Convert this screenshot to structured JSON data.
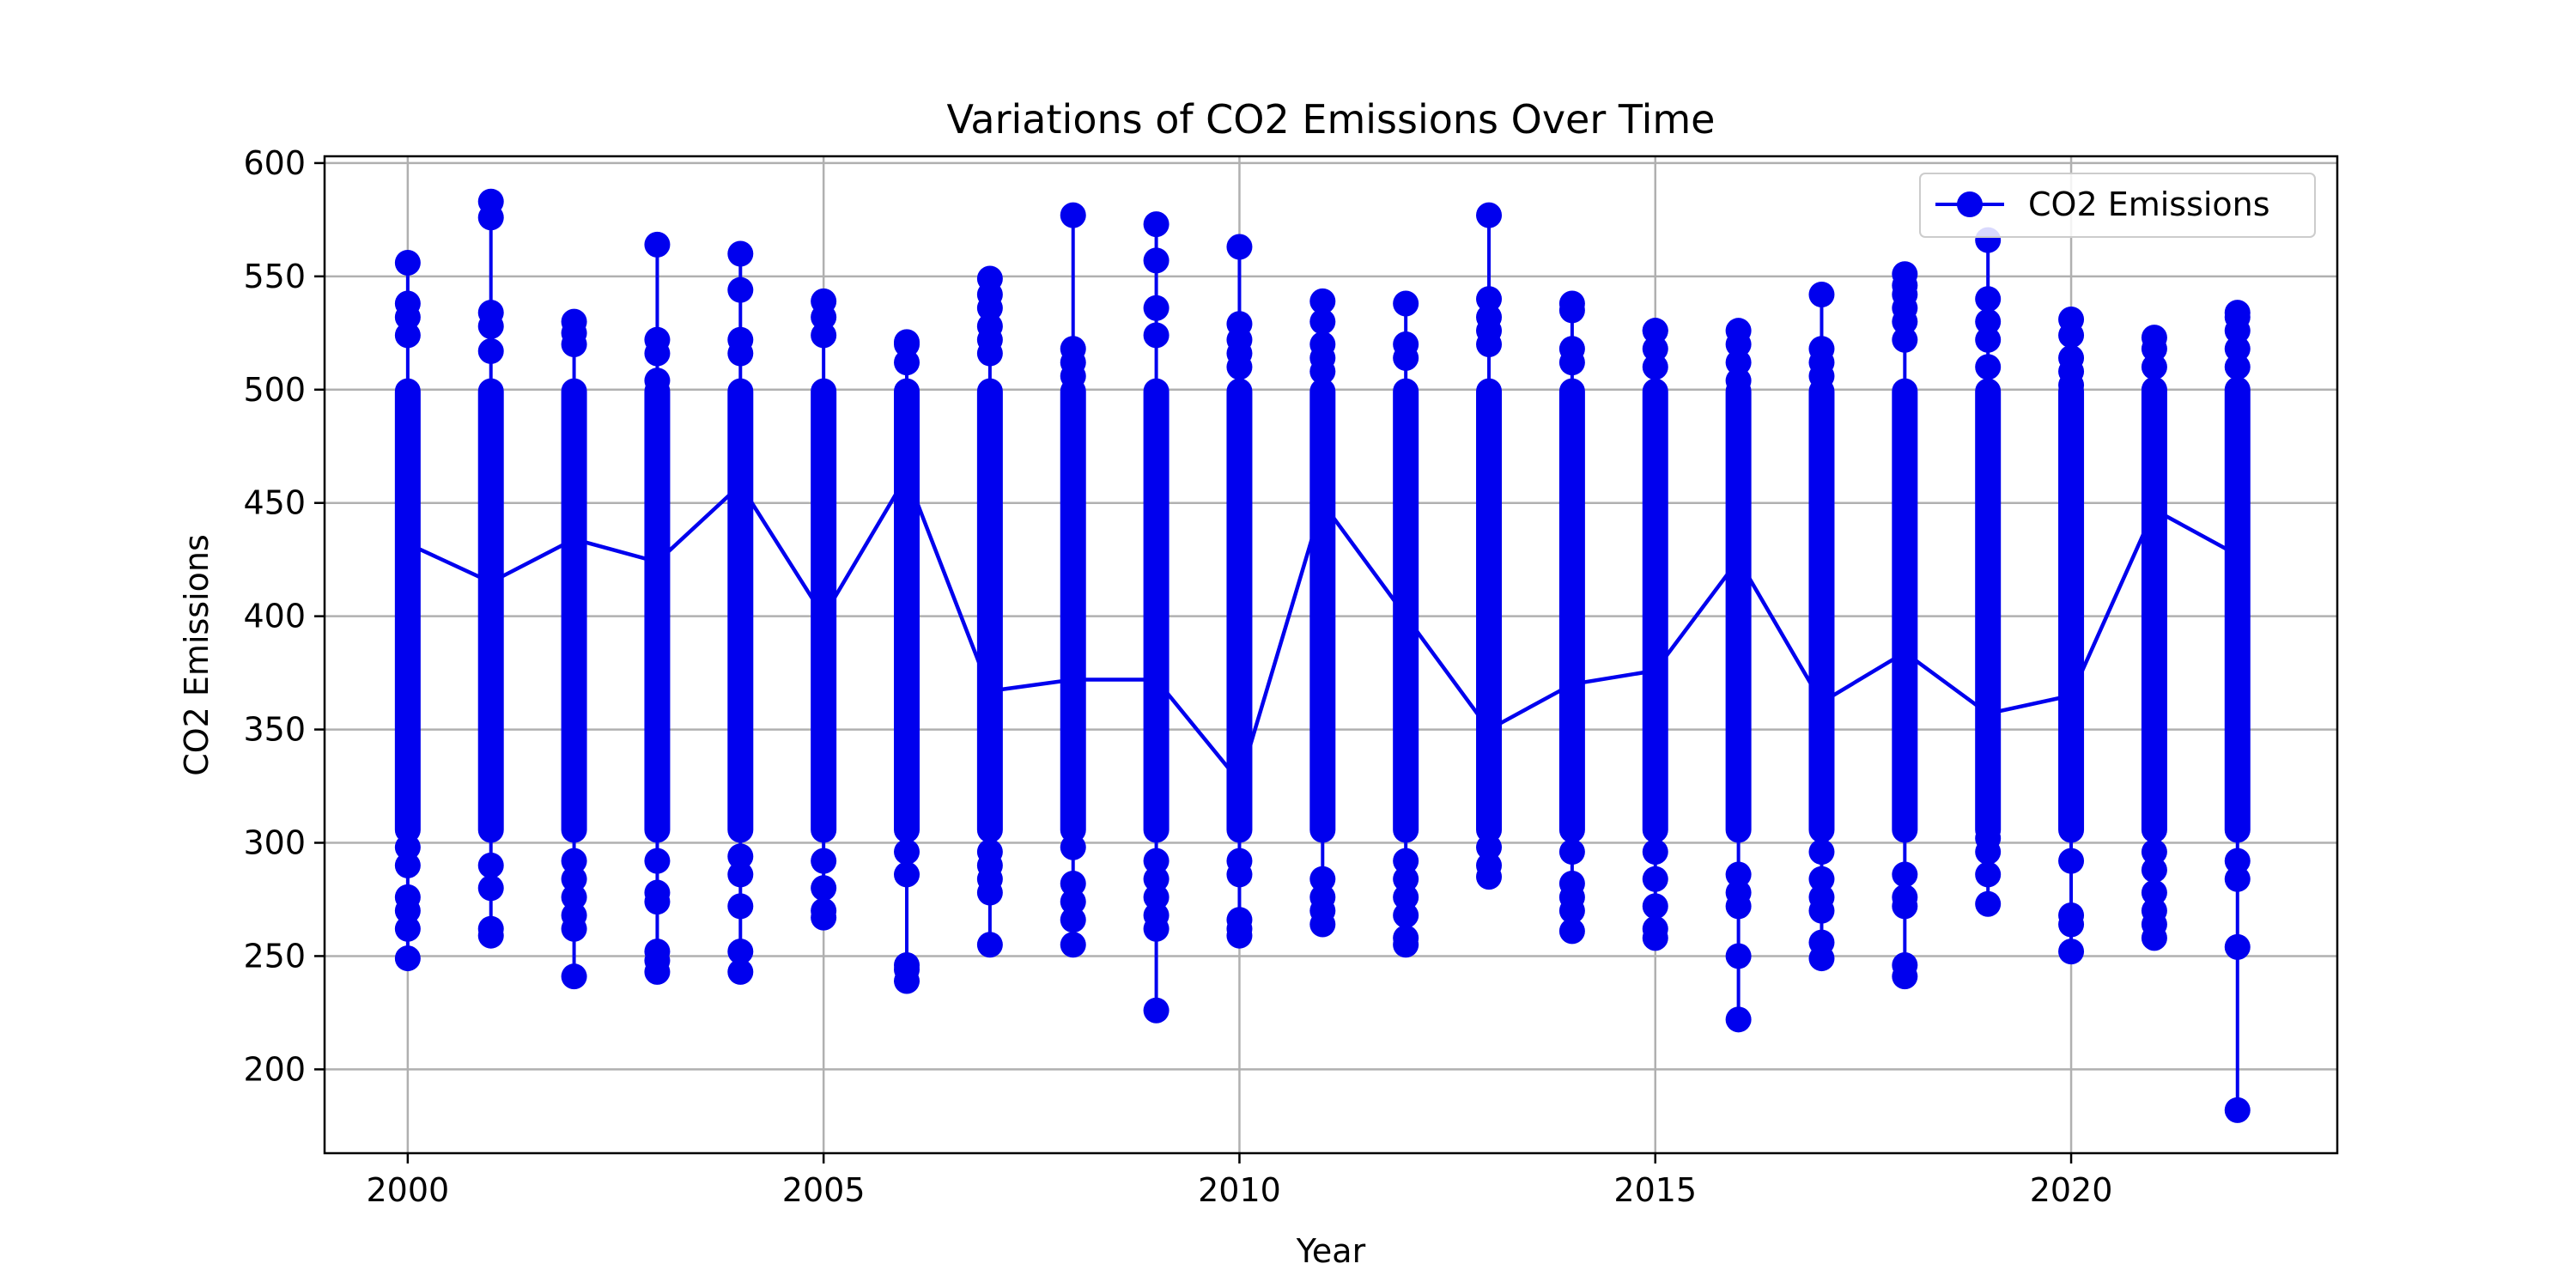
{
  "chart_data": {
    "type": "line",
    "title": "Variations of CO2 Emissions Over Time",
    "xlabel": "Year",
    "ylabel": "CO2 Emissions",
    "xlim": [
      1999,
      2023.2
    ],
    "ylim": [
      163,
      603
    ],
    "xticks": [
      2000,
      2005,
      2010,
      2015,
      2020
    ],
    "yticks": [
      200,
      250,
      300,
      350,
      400,
      450,
      500,
      550,
      600
    ],
    "grid": true,
    "legend": {
      "position": "upper-right",
      "label": "CO2 Emissions"
    },
    "colors": {
      "series": "#0000ee",
      "grid": "#b0b0b0",
      "axes": "#000000"
    },
    "series": [
      {
        "name": "CO2 Emissions",
        "x": [
          2000,
          2001,
          2002,
          2003,
          2004,
          2005,
          2006,
          2007,
          2008,
          2009,
          2010,
          2011,
          2012,
          2013,
          2014,
          2015,
          2016,
          2017,
          2018,
          2019,
          2020,
          2021,
          2022
        ],
        "line": [
          432,
          415,
          434,
          424,
          458,
          400,
          462,
          367,
          372,
          372,
          327,
          450,
          400,
          350,
          370,
          376,
          425,
          362,
          384,
          357,
          365,
          447,
          427
        ],
        "min": [
          249,
          259,
          241,
          243,
          243,
          267,
          239,
          255,
          255,
          226,
          259,
          264,
          255,
          285,
          261,
          258,
          222,
          249,
          241,
          273,
          252,
          258,
          182
        ],
        "max": [
          556,
          583,
          530,
          564,
          560,
          539,
          521,
          549,
          577,
          573,
          563,
          539,
          538,
          577,
          538,
          526,
          526,
          542,
          551,
          566,
          531,
          523,
          534
        ],
        "outliers": [
          [
            262,
            270,
            276,
            290,
            298,
            524,
            532,
            538
          ],
          [
            262,
            280,
            290,
            517,
            528,
            534,
            576
          ],
          [
            262,
            268,
            276,
            284,
            292,
            520,
            525
          ],
          [
            248,
            252,
            274,
            278,
            292,
            504,
            516,
            522
          ],
          [
            252,
            272,
            286,
            294,
            516,
            522,
            544
          ],
          [
            270,
            280,
            292,
            524,
            532
          ],
          [
            244,
            246,
            286,
            296,
            512,
            520
          ],
          [
            278,
            284,
            290,
            296,
            516,
            522,
            528,
            536,
            542
          ],
          [
            266,
            274,
            282,
            298,
            506,
            512,
            518
          ],
          [
            262,
            268,
            276,
            284,
            292,
            524,
            536,
            557
          ],
          [
            262,
            266,
            286,
            292,
            510,
            516,
            522,
            529
          ],
          [
            270,
            276,
            284,
            508,
            514,
            520,
            530
          ],
          [
            258,
            268,
            276,
            284,
            292,
            514,
            520
          ],
          [
            290,
            298,
            520,
            526,
            532,
            540
          ],
          [
            270,
            276,
            282,
            296,
            512,
            518,
            535
          ],
          [
            262,
            272,
            284,
            296,
            510,
            518,
            526
          ],
          [
            250,
            272,
            278,
            286,
            504,
            512,
            520
          ],
          [
            256,
            270,
            276,
            284,
            296,
            506,
            512,
            518
          ],
          [
            246,
            272,
            276,
            286,
            522,
            530,
            536,
            542,
            546
          ],
          [
            286,
            296,
            302,
            510,
            522,
            530,
            540
          ],
          [
            264,
            268,
            292,
            502,
            508,
            514,
            524
          ],
          [
            264,
            270,
            278,
            288,
            296,
            500,
            510,
            518
          ],
          [
            254,
            284,
            292,
            500,
            510,
            518,
            526,
            532
          ]
        ]
      }
    ]
  }
}
